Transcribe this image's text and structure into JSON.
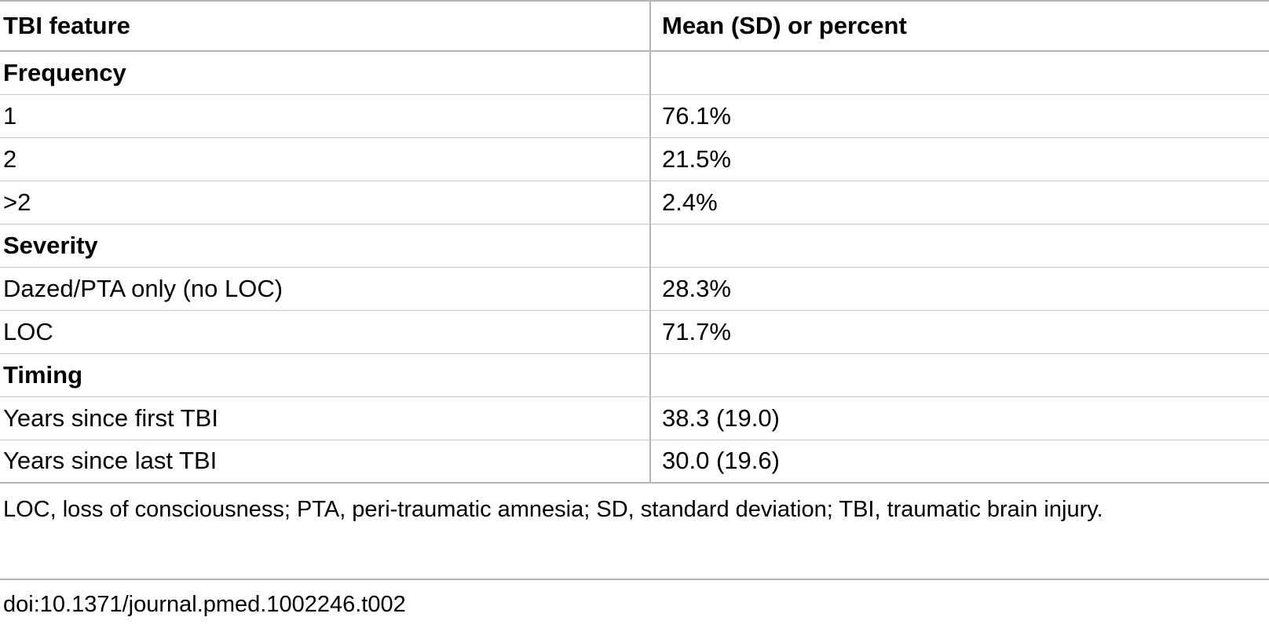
{
  "table": {
    "headers": [
      "TBI feature",
      "Mean (SD) or percent"
    ],
    "rows": [
      {
        "label": "Frequency",
        "value": "",
        "section": true
      },
      {
        "label": "1",
        "value": "76.1%",
        "section": false
      },
      {
        "label": "2",
        "value": "21.5%",
        "section": false
      },
      {
        "label": ">2",
        "value": "2.4%",
        "section": false
      },
      {
        "label": "Severity",
        "value": "",
        "section": true
      },
      {
        "label": "Dazed/PTA only (no LOC)",
        "value": "28.3%",
        "section": false
      },
      {
        "label": "LOC",
        "value": "71.7%",
        "section": false
      },
      {
        "label": "Timing",
        "value": "",
        "section": true
      },
      {
        "label": "Years since first TBI",
        "value": "38.3 (19.0)",
        "section": false
      },
      {
        "label": "Years since last TBI",
        "value": "30.0 (19.6)",
        "section": false
      }
    ]
  },
  "footnote": "LOC, loss of consciousness; PTA, peri-traumatic amnesia; SD, standard deviation; TBI, traumatic brain injury.",
  "doi": "doi:10.1371/journal.pmed.1002246.t002"
}
